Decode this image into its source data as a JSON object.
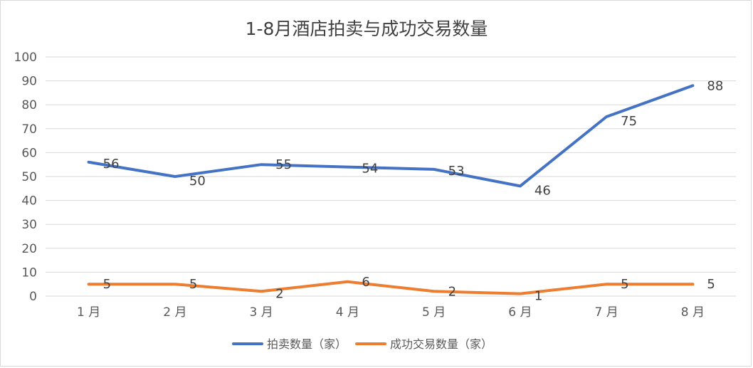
{
  "chart_data": {
    "type": "line",
    "title": "1-8月酒店拍卖与成功交易数量",
    "categories": [
      "1 月",
      "2 月",
      "3 月",
      "4 月",
      "5 月",
      "6 月",
      "7 月",
      "8 月"
    ],
    "series": [
      {
        "name": "拍卖数量（家）",
        "color": "#4472C4",
        "values": [
          56,
          50,
          55,
          54,
          53,
          46,
          75,
          88
        ]
      },
      {
        "name": "成功交易数量（家）",
        "color": "#ED7D31",
        "values": [
          5,
          5,
          2,
          6,
          2,
          1,
          5,
          5
        ]
      }
    ],
    "ylim": [
      0,
      100
    ],
    "yticks": [
      0,
      10,
      20,
      30,
      40,
      50,
      60,
      70,
      80,
      90,
      100
    ],
    "grid": true,
    "gridColor": "#d9d9d9",
    "legend": "bottom",
    "data_labels": true
  }
}
